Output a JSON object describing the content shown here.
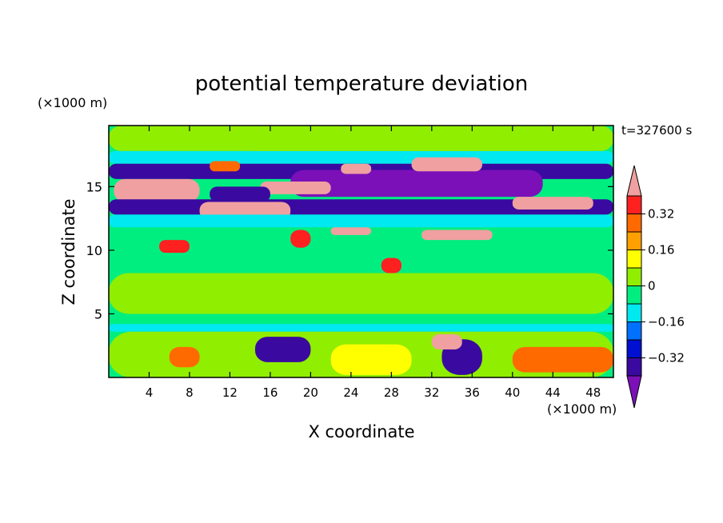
{
  "chart_data": {
    "type": "heatmap",
    "title": "potential temperature deviation",
    "time_label": "t=327600 s",
    "xlabel": "X coordinate",
    "ylabel": "Z coordinate",
    "x_unit": "(×1000 m)",
    "y_unit": "(×1000 m)",
    "xlim": [
      0,
      50
    ],
    "ylim": [
      0,
      19.8
    ],
    "x_ticks": [
      4,
      8,
      12,
      16,
      20,
      24,
      28,
      32,
      36,
      40,
      44,
      48
    ],
    "y_ticks": [
      5,
      10,
      15
    ],
    "grid": false,
    "colorbar": {
      "labels": [
        "0.32",
        "0.16",
        "0",
        "-0.16",
        "-0.32"
      ],
      "label_values": [
        0.32,
        0.16,
        0,
        -0.16,
        -0.32
      ],
      "levels": [
        {
          "min": 0.4,
          "max": null,
          "color": "#f0a0a0"
        },
        {
          "min": 0.32,
          "max": 0.4,
          "color": "#ff2020"
        },
        {
          "min": 0.24,
          "max": 0.32,
          "color": "#ff6a00"
        },
        {
          "min": 0.16,
          "max": 0.24,
          "color": "#ffa000"
        },
        {
          "min": 0.08,
          "max": 0.16,
          "color": "#ffff00"
        },
        {
          "min": 0.0,
          "max": 0.08,
          "color": "#90ee00"
        },
        {
          "min": -0.08,
          "max": 0.0,
          "color": "#00ee80"
        },
        {
          "min": -0.16,
          "max": -0.08,
          "color": "#00e8f0"
        },
        {
          "min": -0.24,
          "max": -0.16,
          "color": "#0070ff"
        },
        {
          "min": -0.32,
          "max": -0.24,
          "color": "#0010d0"
        },
        {
          "min": -0.4,
          "max": -0.32,
          "color": "#3a0aa0"
        },
        {
          "min": null,
          "max": -0.4,
          "color": "#7b10b8"
        }
      ]
    },
    "background_value": -0.04,
    "regions": [
      {
        "value": 0.04,
        "x": [
          0,
          50
        ],
        "z": [
          17.8,
          19.8
        ]
      },
      {
        "value": 0.04,
        "x": [
          14,
          48
        ],
        "z": [
          17.0,
          19.8
        ]
      },
      {
        "value": -0.12,
        "x": [
          0,
          50
        ],
        "z": [
          16.8,
          17.8
        ]
      },
      {
        "value": -0.36,
        "x": [
          0,
          50
        ],
        "z": [
          15.6,
          16.8
        ]
      },
      {
        "value": -0.44,
        "x": [
          18,
          43
        ],
        "z": [
          14.2,
          16.3
        ]
      },
      {
        "value": 0.44,
        "x": [
          0.5,
          9
        ],
        "z": [
          13.8,
          15.6
        ]
      },
      {
        "value": 0.44,
        "x": [
          15,
          22
        ],
        "z": [
          14.4,
          15.4
        ]
      },
      {
        "value": 0.44,
        "x": [
          30,
          37
        ],
        "z": [
          16.2,
          17.3
        ]
      },
      {
        "value": 0.44,
        "x": [
          23,
          26
        ],
        "z": [
          16.0,
          16.8
        ]
      },
      {
        "value": 0.28,
        "x": [
          10,
          13
        ],
        "z": [
          16.2,
          17.0
        ]
      },
      {
        "value": -0.36,
        "x": [
          0,
          50
        ],
        "z": [
          12.8,
          14.0
        ]
      },
      {
        "value": -0.36,
        "x": [
          10,
          16
        ],
        "z": [
          13.8,
          15.0
        ]
      },
      {
        "value": 0.44,
        "x": [
          9,
          18
        ],
        "z": [
          12.4,
          13.8
        ]
      },
      {
        "value": 0.44,
        "x": [
          40,
          48
        ],
        "z": [
          13.2,
          14.2
        ]
      },
      {
        "value": -0.12,
        "x": [
          0,
          50
        ],
        "z": [
          11.8,
          12.8
        ]
      },
      {
        "value": 0.44,
        "x": [
          22,
          26
        ],
        "z": [
          11.2,
          11.8
        ]
      },
      {
        "value": 0.44,
        "x": [
          31,
          38
        ],
        "z": [
          10.8,
          11.6
        ]
      },
      {
        "value": 0.36,
        "x": [
          5,
          8
        ],
        "z": [
          9.8,
          10.8
        ]
      },
      {
        "value": 0.36,
        "x": [
          18,
          20
        ],
        "z": [
          10.2,
          11.6
        ]
      },
      {
        "value": 0.36,
        "x": [
          27,
          29
        ],
        "z": [
          8.2,
          9.4
        ]
      },
      {
        "value": 0.04,
        "x": [
          0,
          50
        ],
        "z": [
          5.0,
          8.2
        ]
      },
      {
        "value": -0.12,
        "x": [
          0,
          50
        ],
        "z": [
          3.6,
          4.2
        ]
      },
      {
        "value": 0.04,
        "x": [
          0,
          50
        ],
        "z": [
          0,
          3.6
        ]
      },
      {
        "value": -0.36,
        "x": [
          14.5,
          20
        ],
        "z": [
          1.2,
          3.2
        ]
      },
      {
        "value": -0.36,
        "x": [
          33,
          37
        ],
        "z": [
          0.2,
          3.0
        ]
      },
      {
        "value": 0.44,
        "x": [
          32,
          35
        ],
        "z": [
          2.2,
          3.4
        ]
      },
      {
        "value": 0.28,
        "x": [
          6,
          9
        ],
        "z": [
          0.8,
          2.4
        ]
      },
      {
        "value": 0.28,
        "x": [
          40,
          50
        ],
        "z": [
          0.4,
          2.4
        ]
      },
      {
        "value": 0.12,
        "x": [
          22,
          30
        ],
        "z": [
          0.2,
          2.6
        ]
      }
    ]
  }
}
